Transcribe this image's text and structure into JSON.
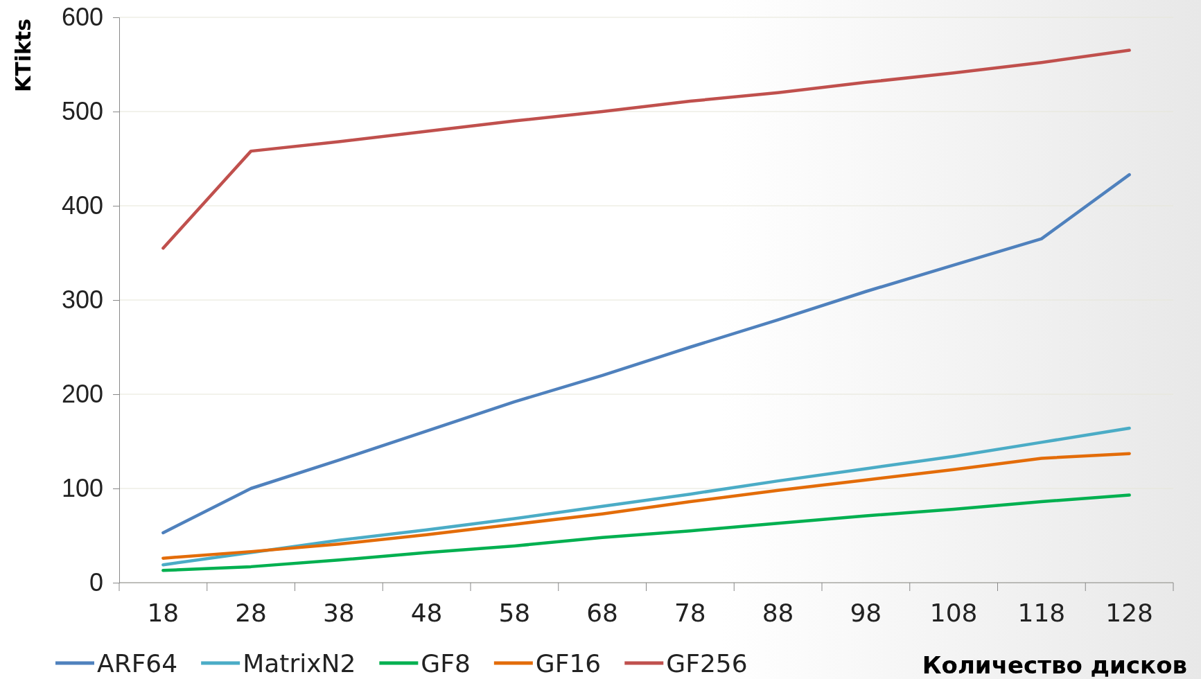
{
  "chart_data": {
    "type": "line",
    "xlabel": "Количество дисков",
    "ylabel": "KTikts",
    "categories": [
      "18",
      "28",
      "38",
      "48",
      "58",
      "68",
      "78",
      "88",
      "98",
      "108",
      "118",
      "128"
    ],
    "ylim": [
      0,
      600
    ],
    "yticks": [
      0,
      100,
      200,
      300,
      400,
      500,
      600
    ],
    "grid": "y",
    "legend": "bottom left",
    "marker": "none",
    "line_style": "solid",
    "series": [
      {
        "name": "ARF64",
        "color": "#4f81bd",
        "values": [
          53,
          100,
          130,
          161,
          192,
          220,
          250,
          279,
          309,
          337,
          365,
          433
        ]
      },
      {
        "name": "MatrixN2",
        "color": "#4bacc6",
        "values": [
          19,
          32,
          45,
          56,
          68,
          81,
          94,
          108,
          121,
          134,
          149,
          164
        ]
      },
      {
        "name": "GF8",
        "color": "#00b050",
        "values": [
          13,
          17,
          24,
          32,
          39,
          48,
          55,
          63,
          71,
          78,
          86,
          93
        ]
      },
      {
        "name": "GF16",
        "color": "#e36c09",
        "values": [
          26,
          33,
          41,
          51,
          62,
          73,
          86,
          98,
          109,
          120,
          132,
          137
        ]
      },
      {
        "name": "GF256",
        "color": "#c0504d",
        "values": [
          355,
          458,
          468,
          479,
          490,
          500,
          511,
          520,
          531,
          541,
          552,
          565
        ]
      }
    ]
  }
}
